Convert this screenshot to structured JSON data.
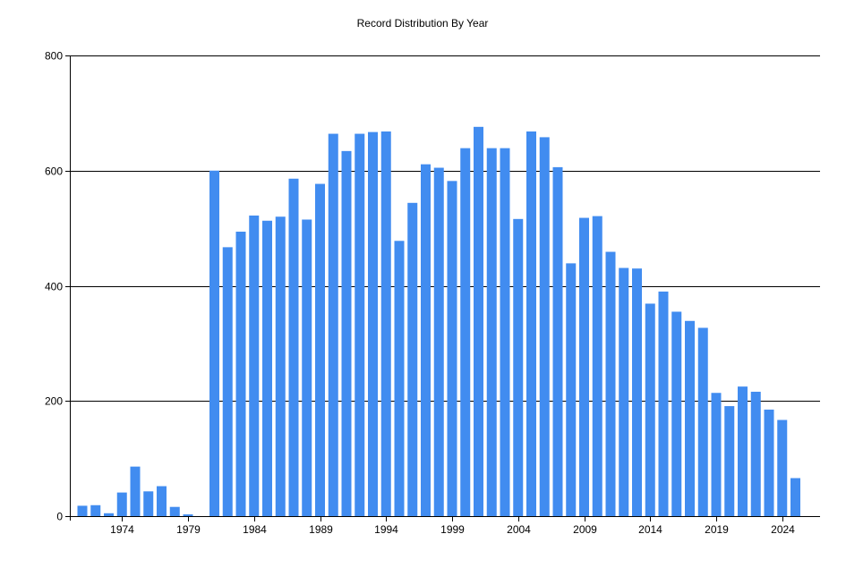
{
  "chart_data": {
    "type": "bar",
    "title": "Record Distribution By Year",
    "xlabel": "",
    "ylabel": "",
    "categories": [
      "1971",
      "1972",
      "1973",
      "1974",
      "1975",
      "1976",
      "1977",
      "1978",
      "1979",
      "1980",
      "1981",
      "1982",
      "1983",
      "1984",
      "1985",
      "1986",
      "1987",
      "1988",
      "1989",
      "1990",
      "1991",
      "1992",
      "1993",
      "1994",
      "1995",
      "1996",
      "1997",
      "1998",
      "1999",
      "2000",
      "2001",
      "2002",
      "2003",
      "2004",
      "2005",
      "2006",
      "2007",
      "2008",
      "2009",
      "2010",
      "2011",
      "2012",
      "2013",
      "2014",
      "2015",
      "2016",
      "2017",
      "2018",
      "2019",
      "2020",
      "2021",
      "2022",
      "2023",
      "2024",
      "2025"
    ],
    "values": [
      18,
      19,
      5,
      41,
      86,
      43,
      52,
      16,
      3,
      0,
      600,
      467,
      494,
      522,
      513,
      520,
      586,
      515,
      577,
      664,
      634,
      664,
      667,
      668,
      478,
      544,
      611,
      605,
      582,
      639,
      676,
      639,
      639,
      516,
      668,
      658,
      606,
      439,
      518,
      521,
      459,
      431,
      430,
      369,
      390,
      355,
      339,
      327,
      214,
      191,
      225,
      216,
      185,
      167,
      66
    ],
    "x_tick_labels": [
      "1974",
      "1979",
      "1984",
      "1989",
      "1994",
      "1999",
      "2004",
      "2009",
      "2014",
      "2019",
      "2024"
    ],
    "y_tick_labels": [
      "0",
      "200",
      "400",
      "600",
      "800"
    ],
    "ylim": [
      0,
      800
    ],
    "y_ticks": [
      0,
      200,
      400,
      600,
      800
    ],
    "grid": true,
    "legend": "none",
    "bar_color": "#418CF0"
  }
}
